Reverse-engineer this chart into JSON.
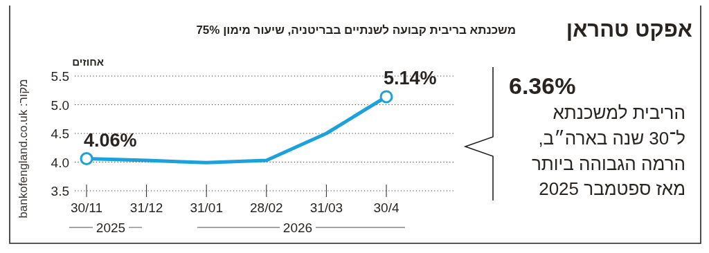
{
  "chart_data": {
    "type": "line",
    "title": "אפקט טהראן",
    "subtitle": "משכנתא בריבית קבועה לשנתיים בבריטניה, שיעור מימון 75%",
    "ylabel": "אחוזים",
    "categories": [
      "30/11",
      "31/12",
      "31/01",
      "28/02",
      "31/03",
      "30/4"
    ],
    "series": [
      {
        "color": "#1ba1dc",
        "values": [
          4.06,
          4.03,
          3.99,
          4.03,
          4.5,
          5.14
        ],
        "value_labels": [
          "4.06%",
          null,
          null,
          null,
          null,
          "5.14%"
        ]
      }
    ],
    "ylim": [
      3.5,
      5.5
    ],
    "yticks": [
      3.5,
      {
        "value": 4,
        "label": "4.0"
      },
      4.5,
      {
        "value": 5,
        "label": "5.0"
      },
      5.5
    ],
    "grid": "y",
    "line_style": "solid",
    "annotations": [
      "2025",
      "2026",
      "6.36%",
      "הריבית למשכנתא",
      "ל־30 שנה בארה״ב,",
      "הרמה הגבוהה ביותר",
      "מאז ספטמבר 2025",
      "מקור: bankofengland.co.uk"
    ]
  }
}
